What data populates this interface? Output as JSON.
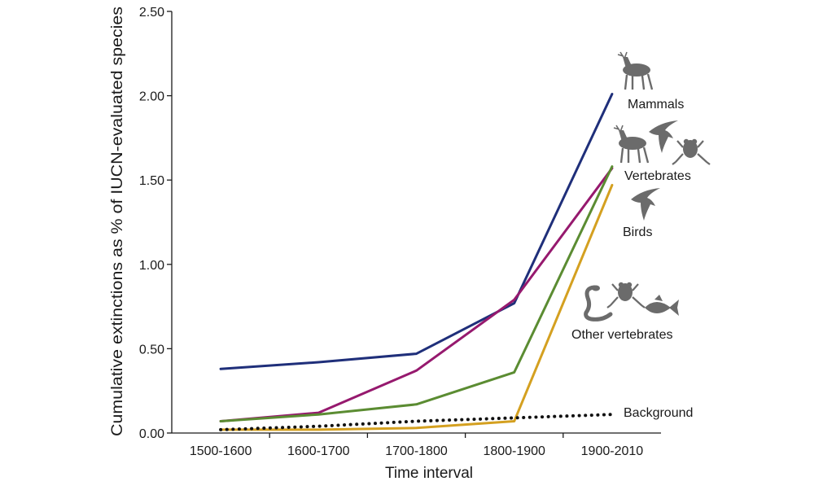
{
  "chart_data": {
    "type": "line",
    "categories": [
      "1500-1600",
      "1600-1700",
      "1700-1800",
      "1800-1900",
      "1900-2010"
    ],
    "xlabel": "Time interval",
    "ylabel": "Cumulative extinctions as % of IUCN-evaluated species",
    "ylim": [
      0,
      2.5
    ],
    "yticks": [
      "0.00",
      "0.50",
      "1.00",
      "1.50",
      "2.00",
      "2.50"
    ],
    "grid": false,
    "legend": "direct labels at right",
    "series": [
      {
        "name": "Mammals",
        "color": "#1f2f7a",
        "style": "solid",
        "icons": [
          "deer"
        ],
        "values": [
          0.38,
          0.42,
          0.47,
          0.77,
          2.01
        ]
      },
      {
        "name": "Vertebrates",
        "color": "#96196e",
        "style": "solid",
        "icons": [
          "deer",
          "bird",
          "frog"
        ],
        "values": [
          0.07,
          0.12,
          0.37,
          0.79,
          1.57
        ]
      },
      {
        "name": "Birds",
        "color": "#5b8c32",
        "style": "solid",
        "icons": [
          "bird"
        ],
        "values": [
          0.07,
          0.11,
          0.17,
          0.36,
          1.58
        ]
      },
      {
        "name": "Other vertebrates",
        "color": "#d4a020",
        "style": "solid",
        "icons": [
          "snake",
          "frog",
          "fish"
        ],
        "values": [
          0.02,
          0.02,
          0.03,
          0.07,
          1.47
        ]
      },
      {
        "name": "Background",
        "color": "#111111",
        "style": "dotted",
        "icons": [],
        "values": [
          0.02,
          0.04,
          0.07,
          0.09,
          0.11
        ]
      }
    ]
  }
}
